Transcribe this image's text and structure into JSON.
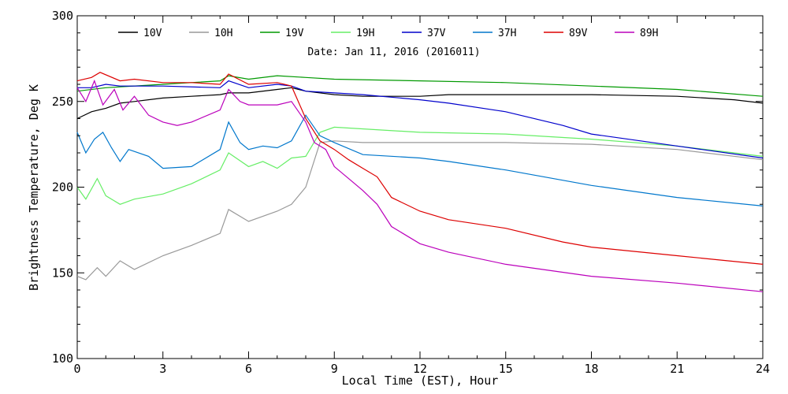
{
  "chart_data": {
    "type": "line",
    "title": "",
    "subtitle": "Date: Jan 11, 2016 (2016011)",
    "xlabel": "Local Time (EST), Hour",
    "ylabel": "Brightness Temperature, Deg K",
    "xlim": [
      0,
      24
    ],
    "ylim": [
      100,
      300
    ],
    "xticks": [
      0,
      3,
      6,
      9,
      12,
      15,
      18,
      21,
      24
    ],
    "yticks": [
      100,
      150,
      200,
      250,
      300
    ],
    "xtick_labels": [
      "0",
      "3",
      "6",
      "9",
      "12",
      "15",
      "18",
      "21",
      "24"
    ],
    "ytick_labels": [
      "100",
      "150",
      "200",
      "250",
      "300"
    ],
    "grid": false,
    "legend_position": "top",
    "series": [
      {
        "name": "10V",
        "color": "#000000",
        "x": [
          0,
          0.5,
          1,
          1.5,
          2,
          3,
          4,
          5,
          5.3,
          6,
          7,
          7.5,
          8,
          9,
          10,
          12,
          13,
          15,
          18,
          21,
          23,
          24
        ],
        "y": [
          240,
          244,
          246,
          249,
          250,
          252,
          253,
          254,
          255,
          255,
          257,
          258,
          256,
          254,
          253,
          253,
          254,
          254,
          254,
          253,
          251,
          249
        ]
      },
      {
        "name": "10H",
        "color": "#999999",
        "x": [
          0,
          0.3,
          0.7,
          1,
          1.5,
          2,
          3,
          4,
          5,
          5.3,
          6,
          7,
          7.5,
          8,
          8.5,
          9,
          10,
          12,
          15,
          18,
          21,
          24
        ],
        "y": [
          148,
          146,
          153,
          148,
          157,
          152,
          160,
          166,
          173,
          187,
          180,
          186,
          190,
          200,
          226,
          227,
          226,
          226,
          226,
          225,
          222,
          216
        ]
      },
      {
        "name": "19V",
        "color": "#009900",
        "x": [
          0,
          1,
          3,
          5,
          5.3,
          6,
          7,
          8,
          9,
          12,
          15,
          18,
          21,
          24
        ],
        "y": [
          256,
          258,
          260,
          262,
          265,
          263,
          265,
          264,
          263,
          262,
          261,
          259,
          257,
          253
        ]
      },
      {
        "name": "19H",
        "color": "#66ee66",
        "x": [
          0,
          0.3,
          0.7,
          1,
          1.5,
          2,
          3,
          4,
          5,
          5.3,
          6,
          6.5,
          7,
          7.5,
          8,
          8.5,
          9,
          12,
          15,
          18,
          21,
          24
        ],
        "y": [
          200,
          193,
          205,
          195,
          190,
          193,
          196,
          202,
          210,
          220,
          212,
          215,
          211,
          217,
          218,
          232,
          235,
          232,
          231,
          228,
          224,
          218
        ]
      },
      {
        "name": "37V",
        "color": "#0000cc",
        "x": [
          0,
          0.5,
          1,
          1.5,
          3,
          5,
          5.3,
          6,
          7,
          7.5,
          8,
          9,
          10,
          12,
          13,
          15,
          17,
          18,
          21,
          24
        ],
        "y": [
          258,
          258,
          260,
          259,
          259,
          258,
          262,
          258,
          260,
          259,
          256,
          255,
          254,
          251,
          249,
          244,
          236,
          231,
          224,
          217
        ]
      },
      {
        "name": "37H",
        "color": "#0077cc",
        "x": [
          0,
          0.3,
          0.6,
          0.9,
          1.2,
          1.5,
          1.8,
          2.5,
          3,
          4,
          5,
          5.3,
          5.7,
          6,
          6.5,
          7,
          7.5,
          8,
          8.5,
          9,
          10,
          12,
          13,
          15,
          18,
          21,
          24
        ],
        "y": [
          232,
          220,
          228,
          232,
          223,
          215,
          222,
          218,
          211,
          212,
          222,
          238,
          226,
          222,
          224,
          223,
          227,
          242,
          230,
          226,
          219,
          217,
          215,
          210,
          201,
          194,
          189
        ]
      },
      {
        "name": "89V",
        "color": "#dd0000",
        "x": [
          0,
          0.5,
          0.8,
          1.5,
          2,
          3,
          4,
          5,
          5.3,
          6,
          7,
          7.5,
          8,
          8.5,
          9,
          9.5,
          10,
          10.5,
          11,
          12,
          13,
          15,
          17,
          18,
          21,
          24
        ],
        "y": [
          262,
          264,
          267,
          262,
          263,
          261,
          261,
          260,
          266,
          260,
          261,
          259,
          240,
          227,
          222,
          216,
          211,
          206,
          194,
          186,
          181,
          176,
          168,
          165,
          160,
          155
        ]
      },
      {
        "name": "89H",
        "color": "#bb00bb",
        "x": [
          0,
          0.3,
          0.6,
          0.9,
          1.3,
          1.6,
          2,
          2.5,
          3,
          3.5,
          4,
          5,
          5.3,
          5.7,
          6,
          7,
          7.5,
          8,
          8.3,
          8.7,
          9,
          9.5,
          10,
          10.5,
          11,
          12,
          13,
          15,
          18,
          21,
          24
        ],
        "y": [
          258,
          250,
          262,
          248,
          257,
          245,
          253,
          242,
          238,
          236,
          238,
          245,
          257,
          250,
          248,
          248,
          250,
          238,
          226,
          222,
          212,
          205,
          198,
          190,
          177,
          167,
          162,
          155,
          148,
          144,
          139
        ]
      }
    ]
  }
}
